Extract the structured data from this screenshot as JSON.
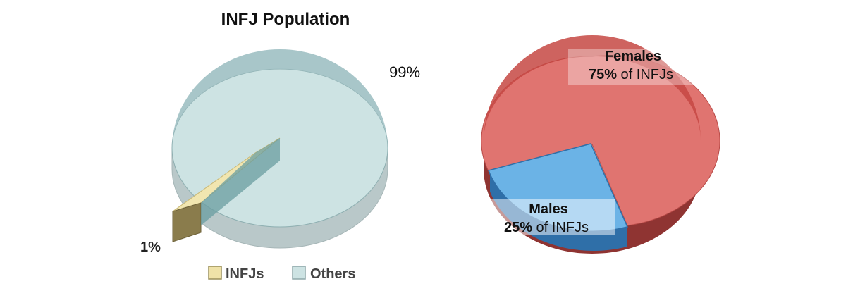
{
  "chart_data": [
    {
      "type": "pie",
      "title": "INFJ Population",
      "slices": [
        {
          "label": "INFJs",
          "value": 1,
          "display": "1%",
          "color": "#e8d89a"
        },
        {
          "label": "Others",
          "value": 99,
          "display": "99%",
          "color": "#cde3e3"
        }
      ],
      "legend": {
        "placement": "bottom",
        "entries": [
          "INFJs",
          "Others"
        ]
      }
    },
    {
      "type": "pie",
      "title": "",
      "slices": [
        {
          "label": "Females",
          "value": 75,
          "display_pct": "75%",
          "display_suffix": " of INFJs",
          "color": "#e07470"
        },
        {
          "label": "Males",
          "value": 25,
          "display_pct": "25%",
          "display_suffix": " of INFJs",
          "color": "#6bb3e6"
        }
      ]
    }
  ]
}
